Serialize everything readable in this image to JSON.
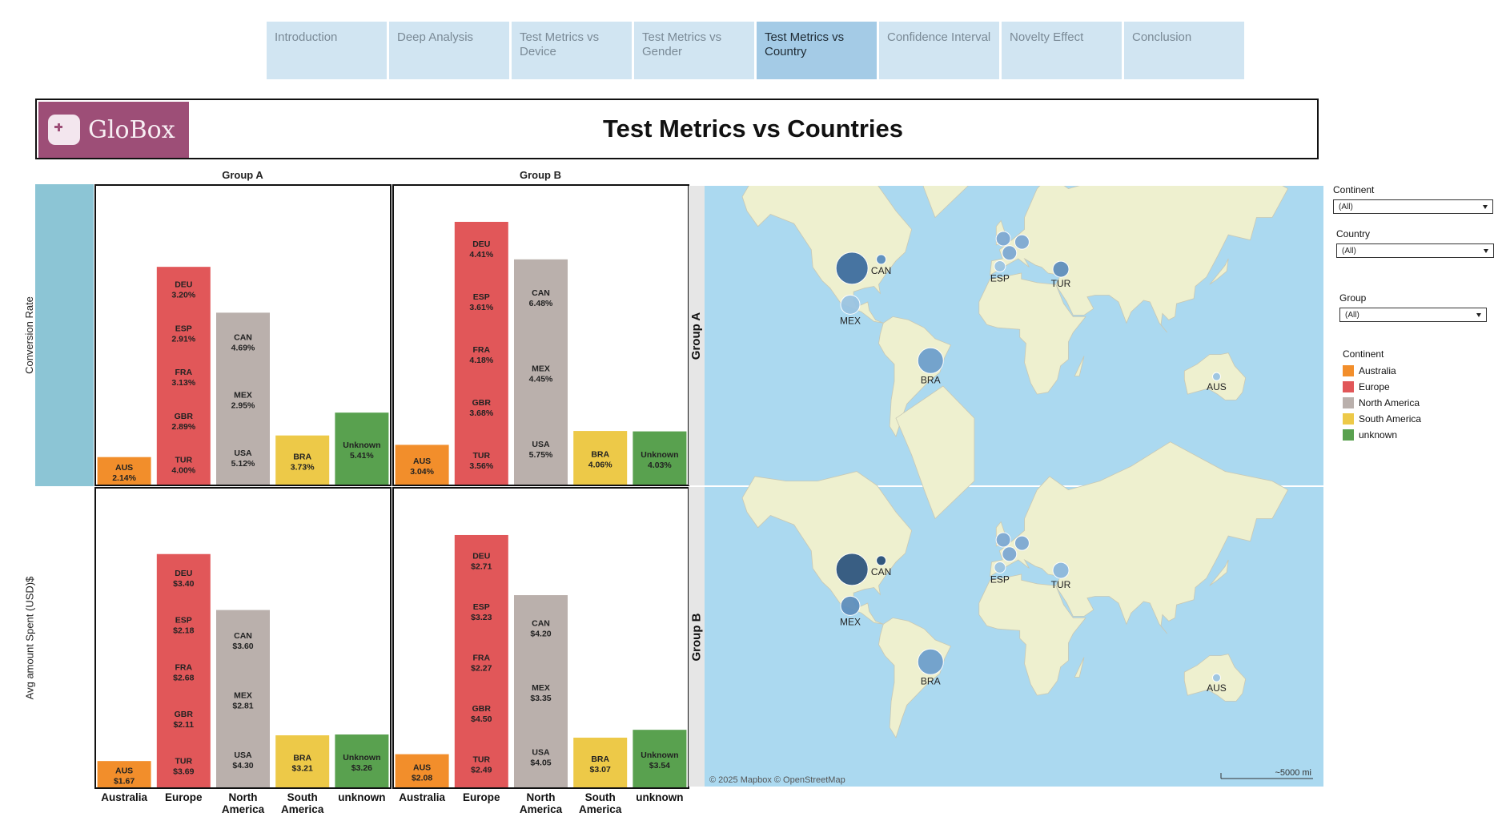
{
  "tabs": [
    {
      "label": "Introduction",
      "active": false
    },
    {
      "label": "Deep Analysis",
      "active": false
    },
    {
      "label": "Test Metrics vs Device",
      "active": false
    },
    {
      "label": "Test Metrics vs Gender",
      "active": false
    },
    {
      "label": "Test Metrics vs Country",
      "active": true
    },
    {
      "label": "Confidence Interval",
      "active": false
    },
    {
      "label": "Novelty Effect",
      "active": false
    },
    {
      "label": "Conclusion",
      "active": false
    }
  ],
  "header": {
    "logo_text": "GloBox",
    "title": "Test Metrics vs Countries"
  },
  "columns": [
    "Group A",
    "Group B"
  ],
  "rows": [
    "Conversion Rate",
    "Avg amount Spent (USD)$"
  ],
  "continents": [
    "Australia",
    "Europe",
    "North America",
    "South America",
    "unknown"
  ],
  "x_labels": [
    [
      "Australia"
    ],
    [
      "Europe"
    ],
    [
      "North",
      "America"
    ],
    [
      "South",
      "America"
    ],
    [
      "unknown"
    ]
  ],
  "colors": {
    "Australia": "#f28e2b",
    "Europe": "#e15759",
    "North America": "#bab0ac",
    "South America": "#edc948",
    "unknown": "#59a14f"
  },
  "chart_data": [
    {
      "type": "bar",
      "stacked": true,
      "row": "Conversion Rate",
      "column": "Group A",
      "stacks": [
        {
          "continent": "Australia",
          "total": 2.14,
          "segments": [
            {
              "label": "AUS",
              "value_label": "2.14%"
            }
          ]
        },
        {
          "continent": "Europe",
          "total": 16.13,
          "segments": [
            {
              "label": "DEU",
              "value_label": "3.20%"
            },
            {
              "label": "ESP",
              "value_label": "2.91%"
            },
            {
              "label": "FRA",
              "value_label": "3.13%"
            },
            {
              "label": "GBR",
              "value_label": "2.89%"
            },
            {
              "label": "TUR",
              "value_label": "4.00%"
            }
          ]
        },
        {
          "continent": "North America",
          "total": 12.76,
          "segments": [
            {
              "label": "CAN",
              "value_label": "4.69%"
            },
            {
              "label": "MEX",
              "value_label": "2.95%"
            },
            {
              "label": "USA",
              "value_label": "5.12%"
            }
          ]
        },
        {
          "continent": "South America",
          "total": 3.73,
          "segments": [
            {
              "label": "BRA",
              "value_label": "3.73%"
            }
          ]
        },
        {
          "continent": "unknown",
          "total": 5.41,
          "segments": [
            {
              "label": "Unknown",
              "value_label": "5.41%"
            }
          ]
        }
      ]
    },
    {
      "type": "bar",
      "stacked": true,
      "row": "Conversion Rate",
      "column": "Group B",
      "stacks": [
        {
          "continent": "Australia",
          "total": 3.04,
          "segments": [
            {
              "label": "AUS",
              "value_label": "3.04%"
            }
          ]
        },
        {
          "continent": "Europe",
          "total": 19.44,
          "segments": [
            {
              "label": "DEU",
              "value_label": "4.41%"
            },
            {
              "label": "ESP",
              "value_label": "3.61%"
            },
            {
              "label": "FRA",
              "value_label": "4.18%"
            },
            {
              "label": "GBR",
              "value_label": "3.68%"
            },
            {
              "label": "TUR",
              "value_label": "3.56%"
            }
          ]
        },
        {
          "continent": "North America",
          "total": 16.68,
          "segments": [
            {
              "label": "CAN",
              "value_label": "6.48%"
            },
            {
              "label": "MEX",
              "value_label": "4.45%"
            },
            {
              "label": "USA",
              "value_label": "5.75%"
            }
          ]
        },
        {
          "continent": "South America",
          "total": 4.06,
          "segments": [
            {
              "label": "BRA",
              "value_label": "4.06%"
            }
          ]
        },
        {
          "continent": "unknown",
          "total": 4.03,
          "segments": [
            {
              "label": "Unknown",
              "value_label": "4.03%"
            }
          ]
        }
      ]
    },
    {
      "type": "bar",
      "stacked": true,
      "row": "Avg amount Spent (USD)$",
      "column": "Group A",
      "stacks": [
        {
          "continent": "Australia",
          "total": 1.67,
          "segments": [
            {
              "label": "AUS",
              "value_label": "$1.67"
            }
          ]
        },
        {
          "continent": "Europe",
          "total": 14.06,
          "segments": [
            {
              "label": "DEU",
              "value_label": "$3.40"
            },
            {
              "label": "ESP",
              "value_label": "$2.18"
            },
            {
              "label": "FRA",
              "value_label": "$2.68"
            },
            {
              "label": "GBR",
              "value_label": "$2.11"
            },
            {
              "label": "TUR",
              "value_label": "$3.69"
            }
          ]
        },
        {
          "continent": "North America",
          "total": 10.71,
          "segments": [
            {
              "label": "CAN",
              "value_label": "$3.60"
            },
            {
              "label": "MEX",
              "value_label": "$2.81"
            },
            {
              "label": "USA",
              "value_label": "$4.30"
            }
          ]
        },
        {
          "continent": "South America",
          "total": 3.21,
          "segments": [
            {
              "label": "BRA",
              "value_label": "$3.21"
            }
          ]
        },
        {
          "continent": "unknown",
          "total": 3.26,
          "segments": [
            {
              "label": "Unknown",
              "value_label": "$3.26"
            }
          ]
        }
      ]
    },
    {
      "type": "bar",
      "stacked": true,
      "row": "Avg amount Spent (USD)$",
      "column": "Group B",
      "stacks": [
        {
          "continent": "Australia",
          "total": 2.08,
          "segments": [
            {
              "label": "AUS",
              "value_label": "$2.08"
            }
          ]
        },
        {
          "continent": "Europe",
          "total": 15.2,
          "segments": [
            {
              "label": "DEU",
              "value_label": "$2.71"
            },
            {
              "label": "ESP",
              "value_label": "$3.23"
            },
            {
              "label": "FRA",
              "value_label": "$2.27"
            },
            {
              "label": "GBR",
              "value_label": "$4.50"
            },
            {
              "label": "TUR",
              "value_label": "$2.49"
            }
          ]
        },
        {
          "continent": "North America",
          "total": 11.6,
          "segments": [
            {
              "label": "CAN",
              "value_label": "$4.20"
            },
            {
              "label": "MEX",
              "value_label": "$3.35"
            },
            {
              "label": "USA",
              "value_label": "$4.05"
            }
          ]
        },
        {
          "continent": "South America",
          "total": 3.07,
          "segments": [
            {
              "label": "BRA",
              "value_label": "$3.07"
            }
          ]
        },
        {
          "continent": "unknown",
          "total": 3.54,
          "segments": [
            {
              "label": "Unknown",
              "value_label": "$3.54"
            }
          ]
        }
      ]
    }
  ],
  "maps": {
    "row_labels": [
      "Group A",
      "Group B"
    ],
    "attribution": "© 2025 Mapbox  © OpenStreetMap",
    "scale_label": "~5000 mi",
    "markers": [
      {
        "code": "CAN",
        "lon": -79.4,
        "lat": 43.7
      },
      {
        "code": "",
        "lon": -98.0,
        "lat": 39.5
      },
      {
        "code": "MEX",
        "lon": -99.1,
        "lat": 19.4
      },
      {
        "code": "BRA",
        "lon": -47.9,
        "lat": -15.8
      },
      {
        "code": "ESP",
        "lon": -3.7,
        "lat": 40.4
      },
      {
        "code": "",
        "lon": -1.5,
        "lat": 52.5
      },
      {
        "code": "",
        "lon": 2.4,
        "lat": 46.6
      },
      {
        "code": "",
        "lon": 10.4,
        "lat": 51.2
      },
      {
        "code": "TUR",
        "lon": 35.2,
        "lat": 39.0
      },
      {
        "code": "AUS",
        "lon": 134.5,
        "lat": -25.3
      },
      {
        "code": "AUS",
        "lon": -225.5,
        "lat": -25.3
      }
    ]
  },
  "filters": [
    {
      "label": "Continent",
      "value": "(All)"
    },
    {
      "label": "Country",
      "value": "(All)"
    },
    {
      "label": "Group",
      "value": "(All)"
    }
  ],
  "legend": {
    "title": "Continent",
    "items": [
      {
        "label": "Australia",
        "color": "#f28e2b"
      },
      {
        "label": "Europe",
        "color": "#e15759"
      },
      {
        "label": "North America",
        "color": "#bab0ac"
      },
      {
        "label": "South America",
        "color": "#edc948"
      },
      {
        "label": "unknown",
        "color": "#59a14f"
      }
    ]
  }
}
